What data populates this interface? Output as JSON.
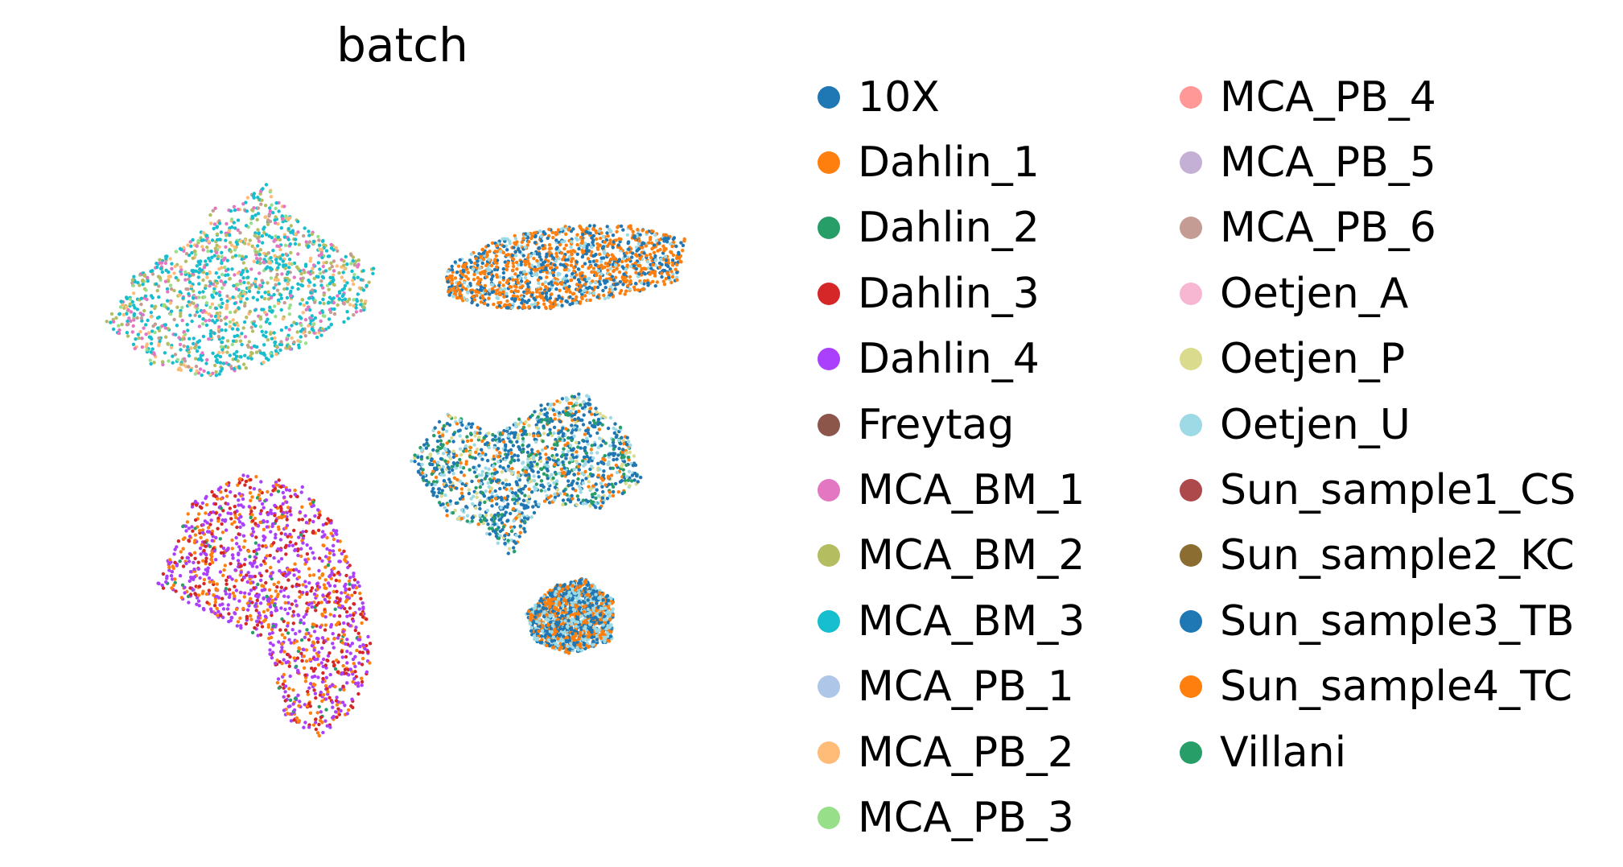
{
  "chart_data": {
    "type": "scatter",
    "title": "batch",
    "xlabel": "",
    "ylabel": "",
    "grid": false,
    "axes_visible": false,
    "legend_placement": "right",
    "legend_title": "",
    "categories": [
      {
        "label": "10X",
        "color": "#1f77b4"
      },
      {
        "label": "Dahlin_1",
        "color": "#ff7f0e"
      },
      {
        "label": "Dahlin_2",
        "color": "#279e68"
      },
      {
        "label": "Dahlin_3",
        "color": "#d62728"
      },
      {
        "label": "Dahlin_4",
        "color": "#aa40fc"
      },
      {
        "label": "Freytag",
        "color": "#8c564b"
      },
      {
        "label": "MCA_BM_1",
        "color": "#e377c2"
      },
      {
        "label": "MCA_BM_2",
        "color": "#b5bd61"
      },
      {
        "label": "MCA_BM_3",
        "color": "#17becf"
      },
      {
        "label": "MCA_PB_1",
        "color": "#aec7e8"
      },
      {
        "label": "MCA_PB_2",
        "color": "#ffbb78"
      },
      {
        "label": "MCA_PB_3",
        "color": "#98df8a"
      },
      {
        "label": "MCA_PB_4",
        "color": "#ff9896"
      },
      {
        "label": "MCA_PB_5",
        "color": "#c5b0d5"
      },
      {
        "label": "MCA_PB_6",
        "color": "#c49c94"
      },
      {
        "label": "Oetjen_A",
        "color": "#f7b6d2"
      },
      {
        "label": "Oetjen_P",
        "color": "#dbdb8d"
      },
      {
        "label": "Oetjen_U",
        "color": "#9edae5"
      },
      {
        "label": "Sun_sample1_CS",
        "color": "#ad494a"
      },
      {
        "label": "Sun_sample2_KC",
        "color": "#8c6d31"
      },
      {
        "label": "Sun_sample3_TB",
        "color": "#1f77b4"
      },
      {
        "label": "Sun_sample4_TC",
        "color": "#ff7f0e"
      },
      {
        "label": "Villani",
        "color": "#279e68"
      }
    ],
    "clusters": [
      {
        "shape": [
          [
            0.08,
            0.68
          ],
          [
            0.12,
            0.75
          ],
          [
            0.2,
            0.8
          ],
          [
            0.24,
            0.86
          ],
          [
            0.22,
            0.82
          ],
          [
            0.3,
            0.88
          ],
          [
            0.34,
            0.83
          ],
          [
            0.38,
            0.8
          ],
          [
            0.45,
            0.76
          ],
          [
            0.44,
            0.7
          ],
          [
            0.38,
            0.66
          ],
          [
            0.3,
            0.62
          ],
          [
            0.22,
            0.6
          ],
          [
            0.14,
            0.62
          ]
        ],
        "mix": {
          "MCA_BM_3": 0.42,
          "MCA_BM_2": 0.18,
          "MCA_BM_1": 0.12,
          "MCA_PB_2": 0.12,
          "MCA_PB_3": 0.08,
          "MCA_PB_6": 0.08
        }
      },
      {
        "shape": [
          [
            0.55,
            0.76
          ],
          [
            0.62,
            0.8
          ],
          [
            0.72,
            0.82
          ],
          [
            0.8,
            0.82
          ],
          [
            0.88,
            0.8
          ],
          [
            0.87,
            0.74
          ],
          [
            0.8,
            0.72
          ],
          [
            0.7,
            0.7
          ],
          [
            0.6,
            0.7
          ],
          [
            0.55,
            0.72
          ]
        ],
        "mix": {
          "Dahlin_1": 0.38,
          "10X": 0.24,
          "Oetjen_U": 0.16,
          "Sun_sample4_TC": 0.12,
          "Sun_sample3_TB": 0.1
        }
      },
      {
        "shape": [
          [
            0.15,
            0.3
          ],
          [
            0.2,
            0.42
          ],
          [
            0.27,
            0.46
          ],
          [
            0.35,
            0.45
          ],
          [
            0.4,
            0.38
          ],
          [
            0.43,
            0.3
          ],
          [
            0.45,
            0.2
          ],
          [
            0.42,
            0.12
          ],
          [
            0.38,
            0.08
          ],
          [
            0.33,
            0.1
          ],
          [
            0.3,
            0.22
          ],
          [
            0.22,
            0.26
          ]
        ],
        "mix": {
          "Dahlin_4": 0.45,
          "Dahlin_3": 0.22,
          "Dahlin_1": 0.18,
          "Sun_sample4_TC": 0.1,
          "Dahlin_2": 0.05
        }
      },
      {
        "shape": [
          [
            0.5,
            0.48
          ],
          [
            0.55,
            0.55
          ],
          [
            0.62,
            0.52
          ],
          [
            0.68,
            0.56
          ],
          [
            0.74,
            0.58
          ],
          [
            0.8,
            0.52
          ],
          [
            0.82,
            0.45
          ],
          [
            0.76,
            0.41
          ],
          [
            0.68,
            0.42
          ],
          [
            0.64,
            0.34
          ],
          [
            0.6,
            0.38
          ],
          [
            0.55,
            0.4
          ]
        ],
        "mix": {
          "10X": 0.32,
          "Oetjen_U": 0.2,
          "Villani": 0.16,
          "Dahlin_1": 0.14,
          "Oetjen_P": 0.1,
          "Sun_sample3_TB": 0.08
        }
      },
      {
        "shape": [
          [
            0.66,
            0.26
          ],
          [
            0.7,
            0.3
          ],
          [
            0.74,
            0.31
          ],
          [
            0.78,
            0.28
          ],
          [
            0.78,
            0.22
          ],
          [
            0.72,
            0.2
          ],
          [
            0.67,
            0.22
          ]
        ],
        "mix": {
          "Sun_sample3_TB": 0.4,
          "Oetjen_U": 0.3,
          "Sun_sample4_TC": 0.3
        }
      }
    ]
  }
}
